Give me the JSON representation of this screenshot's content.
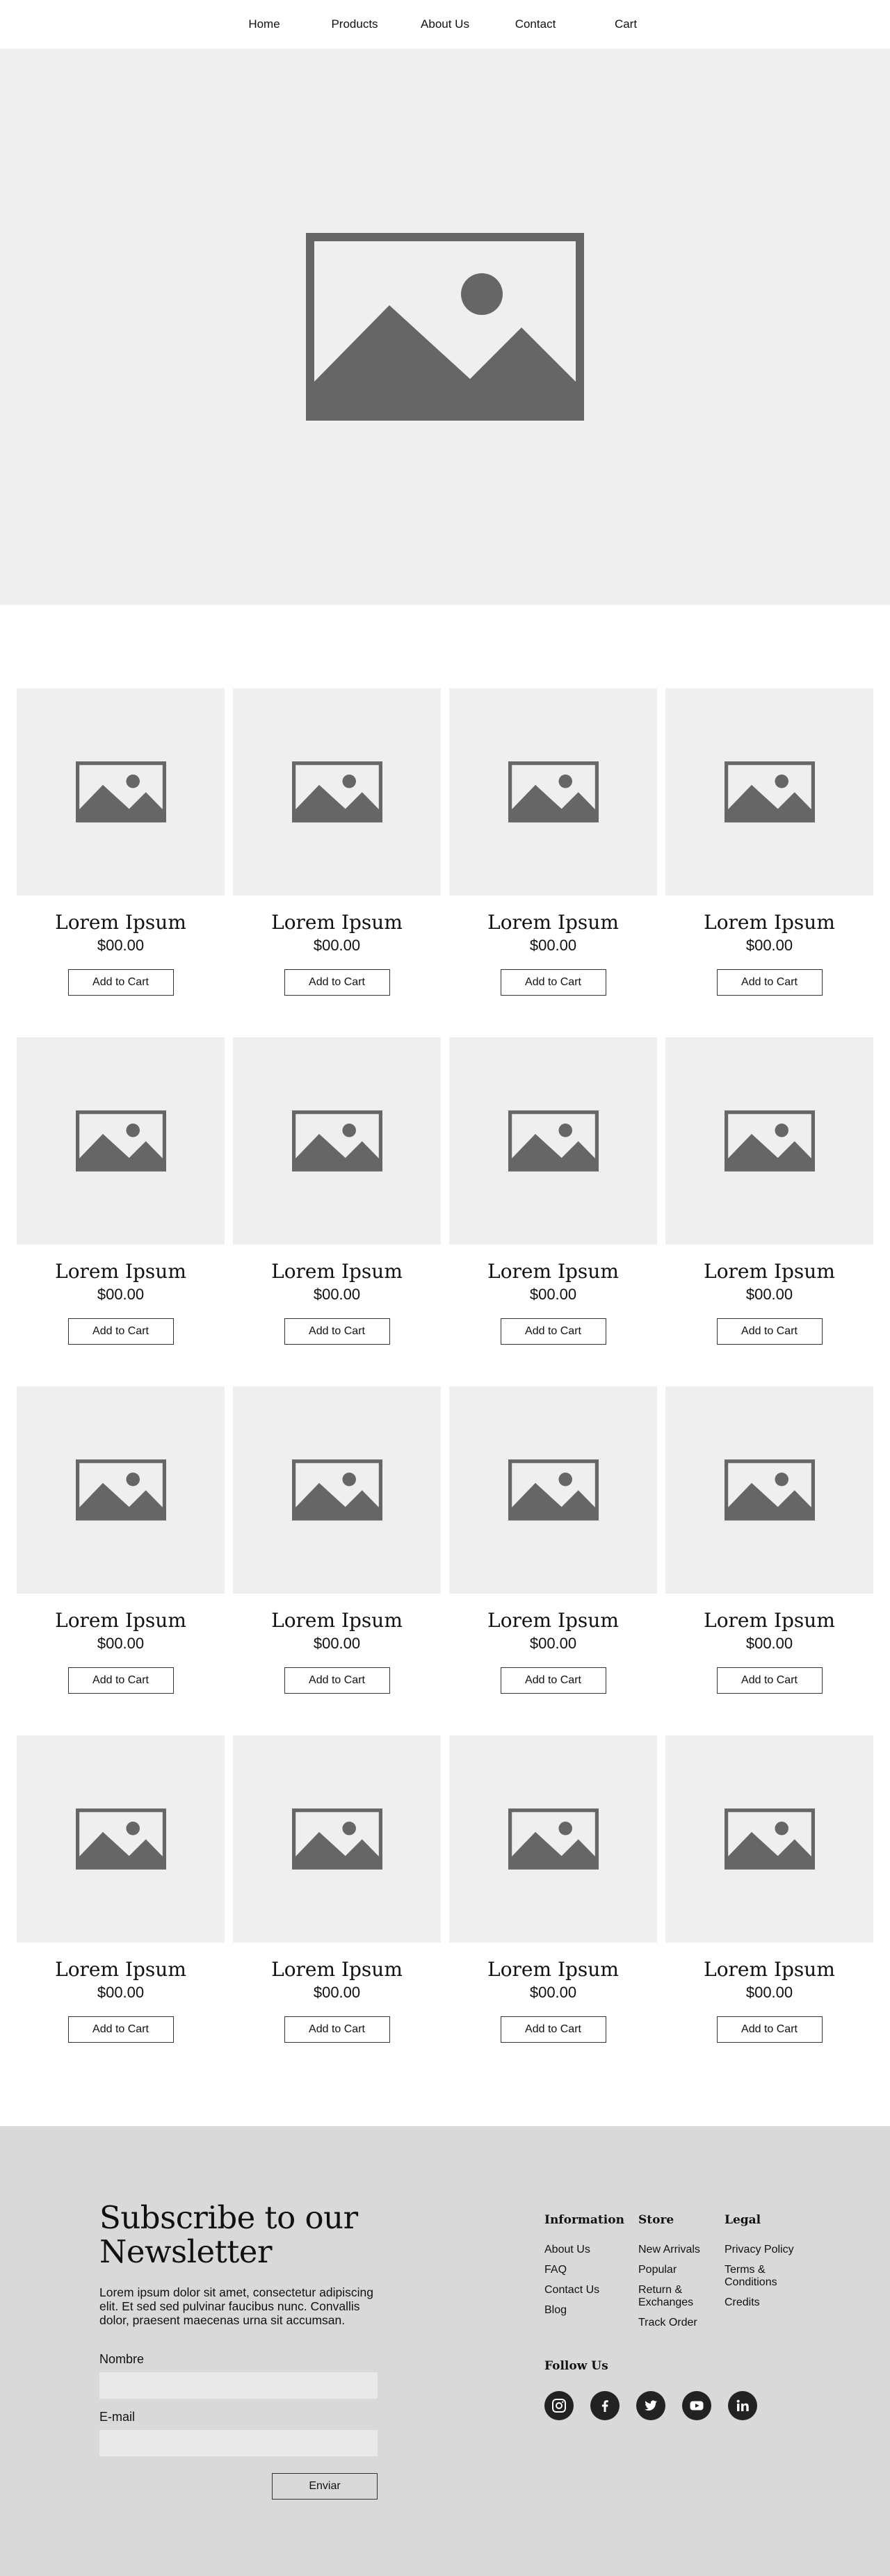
{
  "nav": {
    "items": [
      {
        "label": "Home"
      },
      {
        "label": "Products"
      },
      {
        "label": "About Us"
      },
      {
        "label": "Contact"
      },
      {
        "label": "Cart"
      }
    ]
  },
  "hero": {
    "icon": "image-placeholder-icon"
  },
  "products": {
    "items": [
      {
        "title": "Lorem Ipsum",
        "price": "$00.00",
        "button": "Add to Cart"
      },
      {
        "title": "Lorem Ipsum",
        "price": "$00.00",
        "button": "Add to Cart"
      },
      {
        "title": "Lorem Ipsum",
        "price": "$00.00",
        "button": "Add to Cart"
      },
      {
        "title": "Lorem Ipsum",
        "price": "$00.00",
        "button": "Add to Cart"
      },
      {
        "title": "Lorem Ipsum",
        "price": "$00.00",
        "button": "Add to Cart"
      },
      {
        "title": "Lorem Ipsum",
        "price": "$00.00",
        "button": "Add to Cart"
      },
      {
        "title": "Lorem Ipsum",
        "price": "$00.00",
        "button": "Add to Cart"
      },
      {
        "title": "Lorem Ipsum",
        "price": "$00.00",
        "button": "Add to Cart"
      },
      {
        "title": "Lorem Ipsum",
        "price": "$00.00",
        "button": "Add to Cart"
      },
      {
        "title": "Lorem Ipsum",
        "price": "$00.00",
        "button": "Add to Cart"
      },
      {
        "title": "Lorem Ipsum",
        "price": "$00.00",
        "button": "Add to Cart"
      },
      {
        "title": "Lorem Ipsum",
        "price": "$00.00",
        "button": "Add to Cart"
      },
      {
        "title": "Lorem Ipsum",
        "price": "$00.00",
        "button": "Add to Cart"
      },
      {
        "title": "Lorem Ipsum",
        "price": "$00.00",
        "button": "Add to Cart"
      },
      {
        "title": "Lorem Ipsum",
        "price": "$00.00",
        "button": "Add to Cart"
      },
      {
        "title": "Lorem Ipsum",
        "price": "$00.00",
        "button": "Add to Cart"
      }
    ]
  },
  "newsletter": {
    "title_line1": "Subscribe to our",
    "title_line2": "Newsletter",
    "description": "Lorem ipsum dolor sit amet, consectetur adipiscing elit. Et sed sed pulvinar faucibus nunc. Convallis dolor, praesent maecenas urna sit accumsan.",
    "name_label": "Nombre",
    "name_value": "",
    "email_label": "E-mail",
    "email_value": "",
    "submit": "Enviar"
  },
  "footer": {
    "information": {
      "heading": "Information",
      "links": [
        "About Us",
        "FAQ",
        "Contact Us",
        "Blog"
      ]
    },
    "store": {
      "heading": "Store",
      "links": [
        "New Arrivals",
        "Popular",
        "Return & Exchanges",
        "Track Order"
      ]
    },
    "legal": {
      "heading": "Legal",
      "links": [
        "Privacy Policy",
        "Terms & Conditions",
        "Credits"
      ]
    },
    "follow_heading": "Follow Us",
    "socials": [
      "instagram-icon",
      "facebook-icon",
      "twitter-icon",
      "youtube-icon",
      "linkedin-icon"
    ]
  },
  "colors": {
    "placeholder_bg": "#efefef",
    "placeholder_icon": "#666666",
    "footer_bg": "#d9d9d9",
    "social_bg": "#222222"
  }
}
